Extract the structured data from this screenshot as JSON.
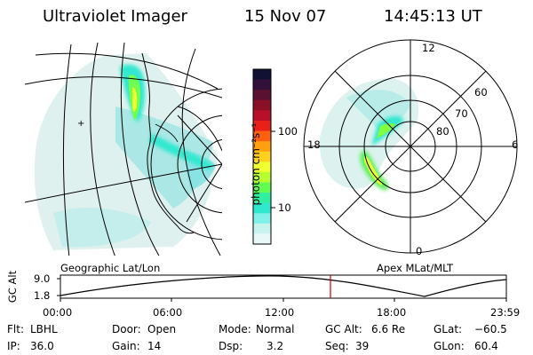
{
  "header": {
    "instrument": "Ultraviolet Imager",
    "date": "15 Nov 07",
    "time": "14:45:13 UT"
  },
  "colorbar": {
    "label": "photon cm⁻²s⁻¹",
    "ticks": [
      "100",
      "10"
    ],
    "colors": [
      "#111133",
      "#33103a",
      "#5a1030",
      "#8a1028",
      "#b8102a",
      "#e8201a",
      "#ff6010",
      "#ffa010",
      "#ffd020",
      "#f0ff30",
      "#b8ff30",
      "#60ff50",
      "#30f0a0",
      "#30e8d0",
      "#80f0e8",
      "#c8f4f0",
      "#e8f8f8"
    ]
  },
  "left_panel": {
    "caption": "Geographic Lat/Lon"
  },
  "right_panel": {
    "caption": "Apex MLat/MLT",
    "mlt_labels": {
      "top": "12",
      "bottom": "0",
      "left": "18",
      "right": "6"
    },
    "lat_labels": [
      "60",
      "70",
      "80"
    ]
  },
  "timeline": {
    "axis_label": "GC Alt",
    "y_ticks": [
      "9.0",
      "1.8"
    ],
    "x_ticks": [
      "00:00",
      "06:00",
      "12:00",
      "18:00",
      "23:59"
    ],
    "marker_color": "#cc0000"
  },
  "info": [
    [
      {
        "k": "Flt:",
        "v": "LBHL"
      },
      {
        "k": "Door:",
        "v": "Open"
      },
      {
        "k": "Mode:",
        "v": "Normal"
      },
      {
        "k": "GC Alt:",
        "v": "6.6 Re"
      },
      {
        "k": "GLat:",
        "v": "−60.5"
      }
    ],
    [
      {
        "k": "IP:",
        "v": "36.0"
      },
      {
        "k": "Gain:",
        "v": "14"
      },
      {
        "k": "Dsp:",
        "v": "3.2"
      },
      {
        "k": "Seq:",
        "v": "39"
      },
      {
        "k": "GLon:",
        "v": "60.4"
      }
    ]
  ]
}
